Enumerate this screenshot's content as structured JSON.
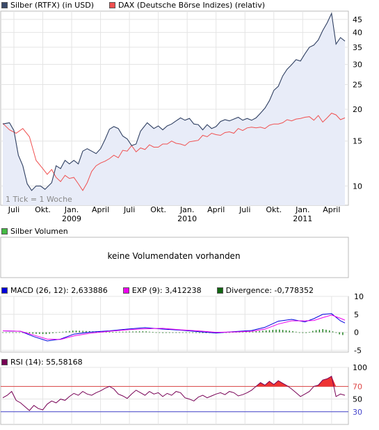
{
  "legend_main": [
    {
      "label": "Silber (RTFX) (in USD)",
      "color": "#2f3f61"
    },
    {
      "label": "DAX (Deutsche Börse Indizes) (relativ)",
      "color": "#f05050"
    }
  ],
  "tick_note": "1 Tick = 1 Woche",
  "volume": {
    "legend": "Silber Volumen",
    "color": "#44bb44",
    "message": "keine Volumendaten vorhanden"
  },
  "macd": {
    "items": [
      {
        "label": "MACD (26, 12): 2,633886",
        "color": "#0000dd"
      },
      {
        "label": "EXP (9): 3,412238",
        "color": "#ee00ee"
      },
      {
        "label": "Divergence: -0,778352",
        "color": "#116611"
      }
    ]
  },
  "rsi": {
    "label": "RSI (14): 55,58168",
    "color": "#770055"
  },
  "chart_data": [
    {
      "type": "line",
      "log_scale": true,
      "y_ticks": [
        10,
        15,
        20,
        25,
        30,
        35,
        40,
        45
      ],
      "x_month_labels": [
        "Juli",
        "Okt.",
        "Jan.",
        "April",
        "Juli",
        "Okt.",
        "Jan.",
        "April",
        "Juli",
        "Okt.",
        "Jan.",
        "April"
      ],
      "x_year_labels": [
        "2009",
        "2010",
        "2011"
      ],
      "grid": true,
      "series": [
        {
          "name": "Silber (RTFX) (in USD)",
          "color": "#2f3f61",
          "fill": "#e8ecf8",
          "x": [
            0,
            3,
            5,
            7,
            9,
            11,
            13,
            15,
            17,
            19,
            22,
            24,
            26,
            28,
            30,
            32,
            34,
            36,
            38,
            40,
            42,
            44,
            46,
            48,
            50,
            52,
            54,
            56,
            58,
            60,
            62,
            65,
            68,
            70,
            72,
            74,
            76,
            78,
            80,
            82,
            84,
            86,
            88,
            90,
            92,
            94,
            96,
            98,
            100,
            102,
            104,
            106,
            108,
            110,
            112,
            114,
            116,
            118,
            120,
            122,
            124,
            126,
            128,
            130,
            132,
            134,
            136,
            138,
            140,
            142,
            144,
            146,
            148,
            150,
            152,
            154
          ],
          "y": [
            17.5,
            17.7,
            16.5,
            13.2,
            12.0,
            10.2,
            9.6,
            10.0,
            10.0,
            9.7,
            10.3,
            12.0,
            11.7,
            12.6,
            12.2,
            12.6,
            12.2,
            13.7,
            14.0,
            13.7,
            13.4,
            14.0,
            15.2,
            16.7,
            17.1,
            16.8,
            15.7,
            15.3,
            14.4,
            14.6,
            16.4,
            17.7,
            16.8,
            17.2,
            16.6,
            17.2,
            17.5,
            18.0,
            18.5,
            18.1,
            18.4,
            17.5,
            17.4,
            16.6,
            17.4,
            16.8,
            17.1,
            17.9,
            18.2,
            18.0,
            18.3,
            18.6,
            18.1,
            18.4,
            18.1,
            18.5,
            19.3,
            20.2,
            21.6,
            23.7,
            24.6,
            27.0,
            28.7,
            29.9,
            31.3,
            30.9,
            33.0,
            35.0,
            35.7,
            37.4,
            40.7,
            43.6,
            47.5,
            36.0,
            38.2,
            37.0
          ]
        },
        {
          "name": "DAX (Deutsche Börse Indizes) (relativ)",
          "color": "#f05050",
          "x": [
            0,
            3,
            6,
            9,
            12,
            15,
            18,
            20,
            22,
            24,
            26,
            28,
            30,
            32,
            34,
            36,
            38,
            40,
            42,
            44,
            46,
            48,
            50,
            52,
            54,
            56,
            58,
            60,
            62,
            64,
            66,
            68,
            70,
            72,
            74,
            76,
            78,
            80,
            82,
            84,
            86,
            88,
            90,
            92,
            94,
            96,
            98,
            100,
            102,
            104,
            106,
            108,
            110,
            112,
            114,
            116,
            118,
            120,
            122,
            124,
            126,
            128,
            130,
            132,
            134,
            136,
            138,
            140,
            142,
            144,
            146,
            148,
            150,
            152,
            154
          ],
          "y": [
            17.6,
            16.6,
            16.1,
            16.8,
            15.6,
            12.6,
            11.7,
            11.1,
            11.6,
            10.8,
            10.4,
            11.0,
            10.7,
            10.8,
            10.2,
            9.6,
            10.3,
            11.4,
            12.0,
            12.3,
            12.5,
            12.8,
            13.2,
            12.9,
            13.8,
            13.7,
            14.4,
            13.6,
            14.1,
            13.9,
            14.5,
            14.2,
            14.2,
            14.6,
            14.6,
            15.0,
            14.7,
            14.6,
            14.4,
            14.9,
            15.0,
            15.1,
            15.8,
            15.6,
            16.1,
            15.9,
            15.8,
            16.2,
            16.3,
            16.1,
            16.8,
            16.5,
            16.9,
            17.0,
            16.9,
            17.0,
            16.8,
            17.3,
            17.5,
            17.5,
            17.7,
            18.2,
            18.0,
            18.3,
            18.4,
            18.6,
            18.7,
            18.1,
            18.9,
            17.8,
            18.5,
            19.3,
            19.0,
            18.2,
            18.5
          ]
        }
      ]
    },
    {
      "type": "line",
      "y_ticks": [
        -5,
        0,
        5,
        10
      ],
      "series": [
        {
          "name": "MACD (26, 12)",
          "color": "#0000dd",
          "x": [
            0,
            8,
            14,
            20,
            26,
            32,
            40,
            48,
            56,
            64,
            72,
            80,
            88,
            96,
            104,
            112,
            118,
            124,
            130,
            136,
            140,
            144,
            148,
            152,
            154
          ],
          "y": [
            0.4,
            0.3,
            -1.2,
            -2.4,
            -1.9,
            -0.5,
            0.1,
            0.4,
            0.9,
            1.3,
            0.9,
            0.6,
            0.2,
            -0.2,
            0.2,
            0.5,
            1.4,
            3.1,
            3.6,
            2.9,
            3.8,
            5.0,
            5.2,
            3.2,
            2.6
          ]
        },
        {
          "name": "EXP (9)",
          "color": "#ee00ee",
          "x": [
            0,
            8,
            14,
            20,
            26,
            32,
            40,
            48,
            56,
            64,
            72,
            80,
            88,
            96,
            104,
            112,
            118,
            124,
            130,
            136,
            140,
            144,
            148,
            152,
            154
          ],
          "y": [
            0.4,
            0.3,
            -0.8,
            -1.9,
            -2.0,
            -1.0,
            -0.2,
            0.3,
            0.7,
            1.0,
            1.1,
            0.7,
            0.4,
            0.0,
            0.1,
            0.3,
            0.9,
            2.3,
            3.2,
            3.2,
            3.3,
            4.1,
            4.8,
            3.9,
            3.4
          ]
        }
      ]
    },
    {
      "type": "line",
      "y_ticks": [
        30,
        50,
        70,
        100
      ],
      "thresholds": [
        30,
        70
      ],
      "series": [
        {
          "name": "RSI (14)",
          "color": "#770055",
          "x": [
            0,
            2,
            4,
            6,
            8,
            10,
            12,
            14,
            16,
            18,
            20,
            22,
            24,
            26,
            28,
            30,
            32,
            34,
            36,
            38,
            40,
            42,
            44,
            46,
            48,
            50,
            52,
            54,
            56,
            58,
            60,
            62,
            64,
            66,
            68,
            70,
            72,
            74,
            76,
            78,
            80,
            82,
            84,
            86,
            88,
            90,
            92,
            94,
            96,
            98,
            100,
            102,
            104,
            106,
            108,
            110,
            112,
            114,
            116,
            118,
            120,
            122,
            124,
            126,
            128,
            130,
            132,
            134,
            136,
            138,
            140,
            142,
            144,
            146,
            148,
            150,
            152,
            154
          ],
          "y": [
            52,
            56,
            62,
            48,
            44,
            38,
            32,
            40,
            35,
            33,
            42,
            47,
            44,
            50,
            48,
            54,
            59,
            56,
            62,
            58,
            56,
            60,
            63,
            67,
            70,
            66,
            58,
            55,
            51,
            58,
            64,
            60,
            56,
            62,
            58,
            60,
            54,
            59,
            56,
            62,
            60,
            52,
            50,
            47,
            53,
            56,
            52,
            55,
            58,
            60,
            57,
            62,
            60,
            55,
            57,
            60,
            64,
            70,
            76,
            72,
            78,
            73,
            79,
            75,
            71,
            66,
            60,
            54,
            58,
            62,
            70,
            72,
            80,
            82,
            86,
            54,
            58,
            56
          ]
        }
      ]
    }
  ]
}
